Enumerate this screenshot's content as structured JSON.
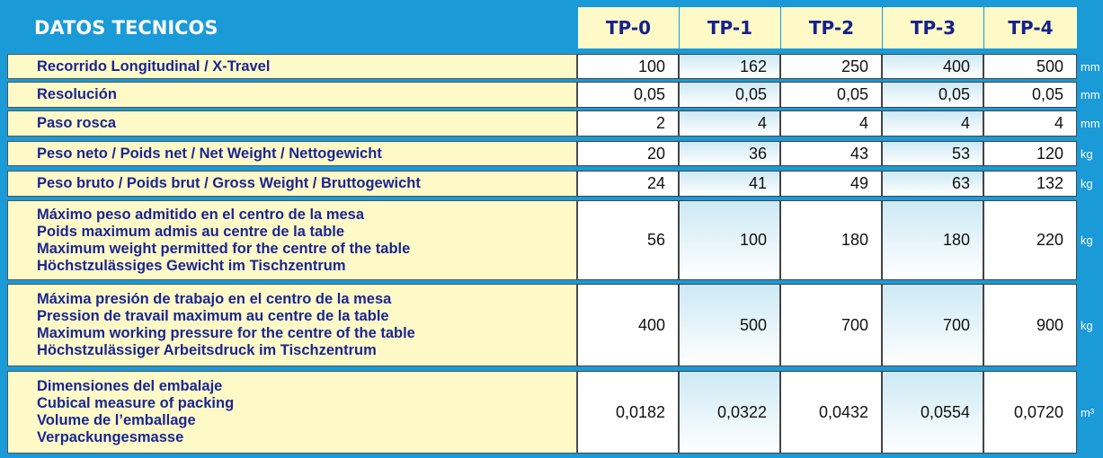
{
  "header": {
    "title": "DATOS TECNICOS",
    "models": [
      "TP-0",
      "TP-1",
      "TP-2",
      "TP-3",
      "TP-4"
    ]
  },
  "rows": [
    {
      "label": [
        "Recorrido Longitudinal / X-Travel"
      ],
      "values": [
        "100",
        "162",
        "250",
        "400",
        "500"
      ],
      "unit": "mm"
    },
    {
      "label": [
        "Resolución"
      ],
      "values": [
        "0,05",
        "0,05",
        "0,05",
        "0,05",
        "0,05"
      ],
      "unit": "mm"
    },
    {
      "label": [
        "Paso rosca"
      ],
      "values": [
        "2",
        "4",
        "4",
        "4",
        "4"
      ],
      "unit": "mm"
    },
    {
      "label": [
        "Peso neto / Poids net / Net Weight / Nettogewicht"
      ],
      "values": [
        "20",
        "36",
        "43",
        "53",
        "120"
      ],
      "unit": "kg"
    },
    {
      "label": [
        "Peso bruto / Poids brut / Gross Weight / Bruttogewicht"
      ],
      "values": [
        "24",
        "41",
        "49",
        "63",
        "132"
      ],
      "unit": "kg"
    },
    {
      "label": [
        "Máximo peso admitido en el centro de la mesa",
        "Poids maximum admis au centre de la table",
        "Maximum weight permitted for the centre of the table",
        "Höchstzulässiges Gewicht im Tischzentrum"
      ],
      "values": [
        "56",
        "100",
        "180",
        "180",
        "220"
      ],
      "unit": "kg"
    },
    {
      "label": [
        "Máxima presión de trabajo en el centro de la mesa",
        "Pression de travail maximum au centre de la table",
        "Maximum working pressure for the centre of the table",
        "Höchstzulässiger Arbeitsdruck im Tischzentrum"
      ],
      "values": [
        "400",
        "500",
        "700",
        "700",
        "900"
      ],
      "unit": "kg"
    },
    {
      "label": [
        "Dimensiones del embalaje",
        "Cubical measure of packing",
        "Volume de l’emballage",
        "Verpackungesmasse"
      ],
      "values": [
        "0,0182",
        "0,0322",
        "0,0432",
        "0,0554",
        "0,0720"
      ],
      "unit": "m³"
    }
  ]
}
